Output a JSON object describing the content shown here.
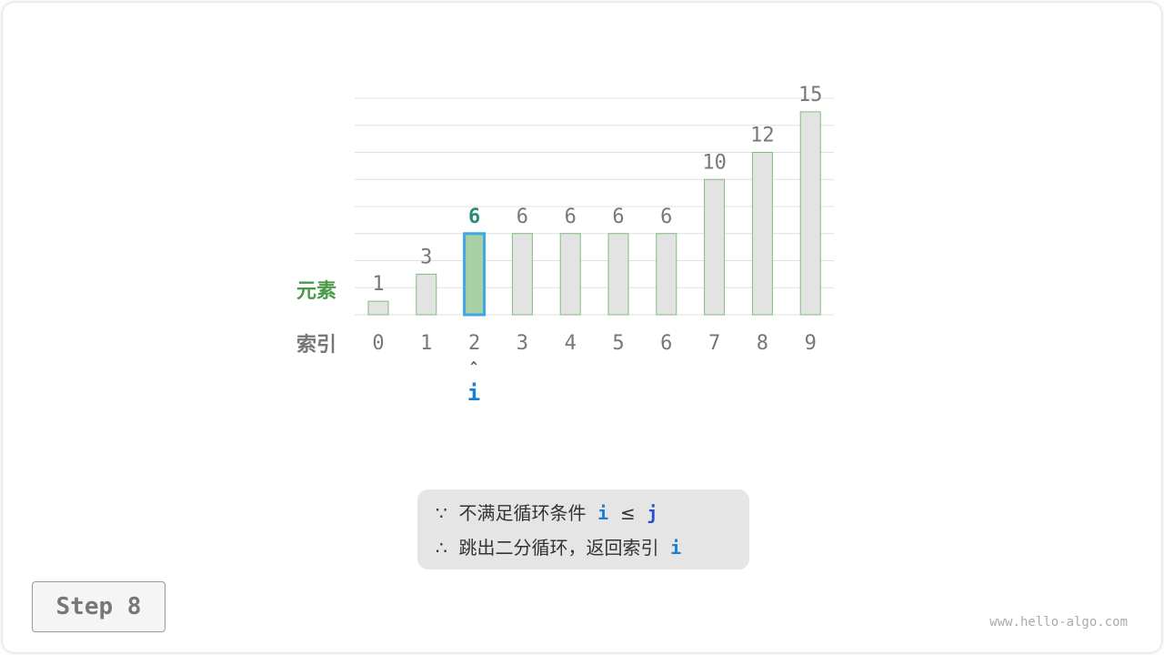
{
  "chart_data": {
    "type": "bar",
    "categories": [
      "0",
      "1",
      "2",
      "3",
      "4",
      "5",
      "6",
      "7",
      "8",
      "9"
    ],
    "values": [
      1,
      3,
      6,
      6,
      6,
      6,
      6,
      10,
      12,
      15
    ],
    "ylim": [
      0,
      16
    ],
    "grid": true,
    "highlight_index": 2,
    "colors": {
      "bar": "#e3e3e3",
      "bar_border": "#7cbf7c",
      "highlight_fill": "#a8d0a4",
      "highlight_border": "#42a5e8",
      "highlight_label": "#2e8b7a",
      "label": "#777777"
    }
  },
  "labels": {
    "element": "元素",
    "index": "索引"
  },
  "pointer": {
    "arrow": "^",
    "name": "i"
  },
  "caption": {
    "line1_prefix": "∵",
    "line1_text": "不满足循环条件",
    "line1_var1": "i",
    "line1_op": "≤",
    "line1_var2": "j",
    "line2_prefix": "∴",
    "line2_text": "跳出二分循环，返回索引",
    "line2_var": "i"
  },
  "step_label": "Step 8",
  "watermark": "www.hello-algo.com"
}
